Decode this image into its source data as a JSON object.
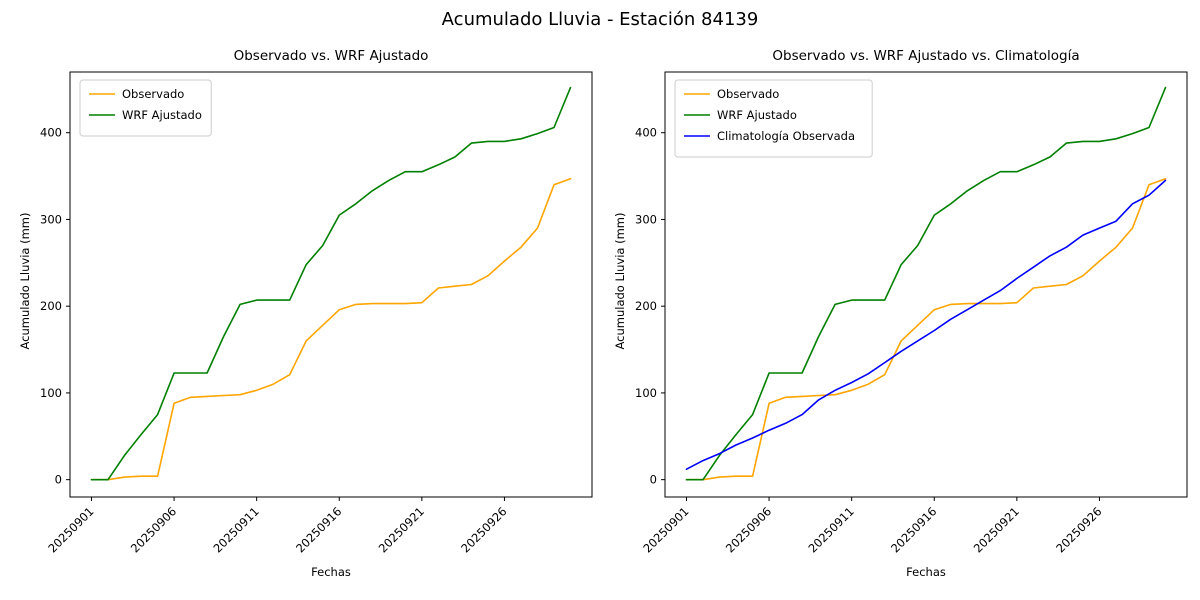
{
  "figure": {
    "title": "Acumulado Lluvia - Estación 84139",
    "background": "#ffffff"
  },
  "chart_data": [
    {
      "type": "line",
      "title": "Observado vs. WRF Ajustado",
      "xlabel": "Fechas",
      "ylabel": "Acumulado Lluvia (mm)",
      "legend_position": "upper left",
      "grid": false,
      "ylim": [
        -20,
        470
      ],
      "y_ticks": [
        0,
        100,
        200,
        300,
        400
      ],
      "x_tick_labels": [
        "20250901",
        "20250906",
        "20250911",
        "20250916",
        "20250921",
        "20250926"
      ],
      "x_tick_indices": [
        0,
        5,
        10,
        15,
        20,
        25
      ],
      "x": [
        "20250901",
        "20250902",
        "20250903",
        "20250904",
        "20250905",
        "20250906",
        "20250907",
        "20250908",
        "20250909",
        "20250910",
        "20250911",
        "20250912",
        "20250913",
        "20250914",
        "20250915",
        "20250916",
        "20250917",
        "20250918",
        "20250919",
        "20250920",
        "20250921",
        "20250922",
        "20250923",
        "20250924",
        "20250925",
        "20250926",
        "20250927",
        "20250928",
        "20250929",
        "20250930"
      ],
      "series": [
        {
          "name": "Observado",
          "color": "#FFA500",
          "values": [
            0,
            0,
            3,
            4,
            4,
            88,
            95,
            96,
            97,
            98,
            103,
            110,
            121,
            160,
            178,
            196,
            202,
            203,
            203,
            203,
            204,
            221,
            223,
            225,
            235,
            252,
            268,
            290,
            340,
            347
          ]
        },
        {
          "name": "WRF Ajustado",
          "color": "#008000",
          "values": [
            0,
            0,
            28,
            52,
            75,
            123,
            123,
            123,
            165,
            202,
            207,
            207,
            207,
            248,
            270,
            305,
            318,
            333,
            345,
            355,
            355,
            363,
            372,
            388,
            390,
            390,
            393,
            399,
            406,
            452
          ]
        }
      ]
    },
    {
      "type": "line",
      "title": "Observado vs. WRF Ajustado vs. Climatología",
      "xlabel": "Fechas",
      "ylabel": "Acumulado Lluvia (mm)",
      "legend_position": "upper left",
      "grid": false,
      "ylim": [
        -20,
        470
      ],
      "y_ticks": [
        0,
        100,
        200,
        300,
        400
      ],
      "x_tick_labels": [
        "20250901",
        "20250906",
        "20250911",
        "20250916",
        "20250921",
        "20250926"
      ],
      "x_tick_indices": [
        0,
        5,
        10,
        15,
        20,
        25
      ],
      "x": [
        "20250901",
        "20250902",
        "20250903",
        "20250904",
        "20250905",
        "20250906",
        "20250907",
        "20250908",
        "20250909",
        "20250910",
        "20250911",
        "20250912",
        "20250913",
        "20250914",
        "20250915",
        "20250916",
        "20250917",
        "20250918",
        "20250919",
        "20250920",
        "20250921",
        "20250922",
        "20250923",
        "20250924",
        "20250925",
        "20250926",
        "20250927",
        "20250928",
        "20250929",
        "20250930"
      ],
      "series": [
        {
          "name": "Observado",
          "color": "#FFA500",
          "values": [
            0,
            0,
            3,
            4,
            4,
            88,
            95,
            96,
            97,
            98,
            103,
            110,
            121,
            160,
            178,
            196,
            202,
            203,
            203,
            203,
            204,
            221,
            223,
            225,
            235,
            252,
            268,
            290,
            340,
            347
          ]
        },
        {
          "name": "WRF Ajustado",
          "color": "#008000",
          "values": [
            0,
            0,
            28,
            52,
            75,
            123,
            123,
            123,
            165,
            202,
            207,
            207,
            207,
            248,
            270,
            305,
            318,
            333,
            345,
            355,
            355,
            363,
            372,
            388,
            390,
            390,
            393,
            399,
            406,
            452
          ]
        },
        {
          "name": "Climatología Observada",
          "color": "#0000FF",
          "values": [
            12,
            22,
            30,
            40,
            48,
            57,
            65,
            75,
            92,
            103,
            112,
            122,
            135,
            148,
            160,
            172,
            185,
            196,
            207,
            218,
            232,
            245,
            258,
            268,
            282,
            290,
            298,
            318,
            328,
            345
          ]
        }
      ]
    }
  ]
}
